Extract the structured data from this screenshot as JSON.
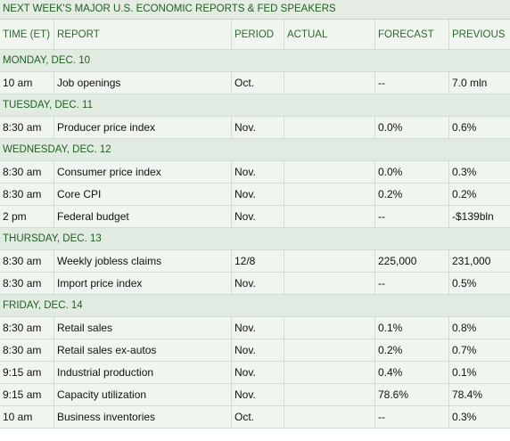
{
  "title": "NEXT WEEK'S MAJOR U.S. ECONOMIC REPORTS & FED SPEAKERS",
  "columns": {
    "time": "TIME (ET)",
    "report": "REPORT",
    "period": "PERIOD",
    "actual": "ACTUAL",
    "forecast": "FORECAST",
    "previous": "PREVIOUS"
  },
  "days": [
    {
      "label": "MONDAY, DEC. 10",
      "rows": [
        {
          "time": "10 am",
          "report": "Job openings",
          "period": "Oct.",
          "actual": "",
          "forecast": "--",
          "previous": "7.0 mln"
        }
      ]
    },
    {
      "label": "TUESDAY, DEC. 11",
      "rows": [
        {
          "time": "8:30 am",
          "report": "Producer price index",
          "period": "Nov.",
          "actual": "",
          "forecast": "0.0%",
          "previous": "0.6%"
        }
      ]
    },
    {
      "label": "WEDNESDAY, DEC. 12",
      "rows": [
        {
          "time": "8:30 am",
          "report": "Consumer price index",
          "period": "Nov.",
          "actual": "",
          "forecast": "0.0%",
          "previous": "0.3%"
        },
        {
          "time": "8:30 am",
          "report": "Core CPI",
          "period": "Nov.",
          "actual": "",
          "forecast": "0.2%",
          "previous": "0.2%"
        },
        {
          "time": "2 pm",
          "report": "Federal budget",
          "period": "Nov.",
          "actual": "",
          "forecast": "--",
          "previous": "-$139bln"
        }
      ]
    },
    {
      "label": "THURSDAY, DEC. 13",
      "rows": [
        {
          "time": "8:30 am",
          "report": "Weekly jobless claims",
          "period": "12/8",
          "actual": "",
          "forecast": "225,000",
          "previous": "231,000"
        },
        {
          "time": "8:30 am",
          "report": "Import price index",
          "period": "Nov.",
          "actual": "",
          "forecast": "--",
          "previous": "0.5%"
        }
      ]
    },
    {
      "label": "FRIDAY, DEC. 14",
      "rows": [
        {
          "time": "8:30 am",
          "report": "Retail sales",
          "period": "Nov.",
          "actual": "",
          "forecast": "0.1%",
          "previous": "0.8%"
        },
        {
          "time": "8:30 am",
          "report": "Retail sales ex-autos",
          "period": "Nov.",
          "actual": "",
          "forecast": "0.2%",
          "previous": "0.7%"
        },
        {
          "time": "9:15 am",
          "report": "Industrial production",
          "period": "Nov.",
          "actual": "",
          "forecast": "0.4%",
          "previous": "0.1%"
        },
        {
          "time": "9:15 am",
          "report": "Capacity utilization",
          "period": "Nov.",
          "actual": "",
          "forecast": "78.6%",
          "previous": "78.4%"
        },
        {
          "time": "10 am",
          "report": "Business inventories",
          "period": "Oct.",
          "actual": "",
          "forecast": "--",
          "previous": "0.3%"
        }
      ]
    }
  ]
}
